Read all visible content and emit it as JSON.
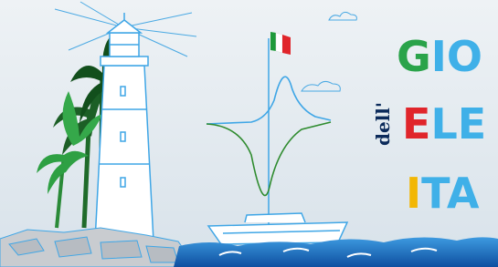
{
  "logo": {
    "prefix": "dell'",
    "lines": [
      {
        "initial": "G",
        "rest": "IO"
      },
      {
        "initial": "E",
        "rest": "LE"
      },
      {
        "initial": "I",
        "rest": "TA"
      }
    ]
  }
}
